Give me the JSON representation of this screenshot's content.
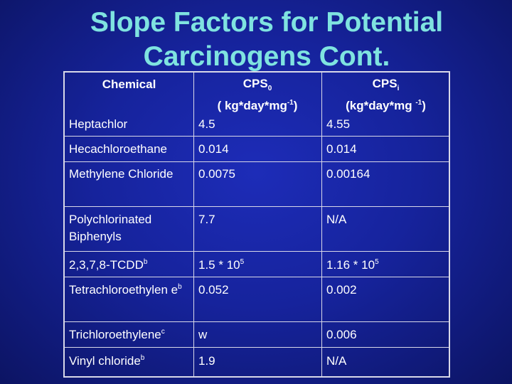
{
  "title": {
    "line1": "Slope Factors for Potential",
    "line2": "Carcinogens Cont."
  },
  "header": {
    "col1": "Chemical",
    "col2_main": "CPS",
    "col2_sub": "0",
    "col2_units_pre": "( kg*day*mg",
    "col2_units_sup": "-1",
    "col2_units_post": ")",
    "col3_main": "CPS",
    "col3_sub": "i",
    "col3_units_pre": "(kg*day*mg ",
    "col3_units_sup": "-1",
    "col3_units_post": ")"
  },
  "rows": [
    {
      "chemical": "Heptachlor",
      "chem_sup": "",
      "oral": "4.5",
      "oral_sup": "",
      "inhal": "4.55",
      "inhal_sup": ""
    },
    {
      "chemical": "Hecachloroethane",
      "chem_sup": "",
      "oral": "0.014",
      "oral_sup": "",
      "inhal": "0.014",
      "inhal_sup": ""
    },
    {
      "chemical": "Methylene Chloride",
      "chem_sup": "",
      "oral": "0.0075",
      "oral_sup": "",
      "inhal": "0.00164",
      "inhal_sup": ""
    },
    {
      "chemical": "Polychlorinated Biphenyls",
      "chem_sup": "",
      "oral": "7.7",
      "oral_sup": "",
      "inhal": "N/A",
      "inhal_sup": ""
    },
    {
      "chemical": "2,3,7,8-TCDD",
      "chem_sup": "b",
      "oral": "1.5 * 10",
      "oral_sup": "5",
      "inhal": "1.16 * 10",
      "inhal_sup": "5"
    },
    {
      "chemical": "Tetrachloroethylen e",
      "chem_sup": "b",
      "oral": "0.052",
      "oral_sup": "",
      "inhal": "0.002",
      "inhal_sup": ""
    },
    {
      "chemical": "Trichloroethylene",
      "chem_sup": "c",
      "oral": "w",
      "oral_sup": "",
      "inhal": "0.006",
      "inhal_sup": ""
    },
    {
      "chemical": "Vinyl chloride",
      "chem_sup": "b",
      "oral": "1.9",
      "oral_sup": "",
      "inhal": "N/A",
      "inhal_sup": ""
    }
  ]
}
